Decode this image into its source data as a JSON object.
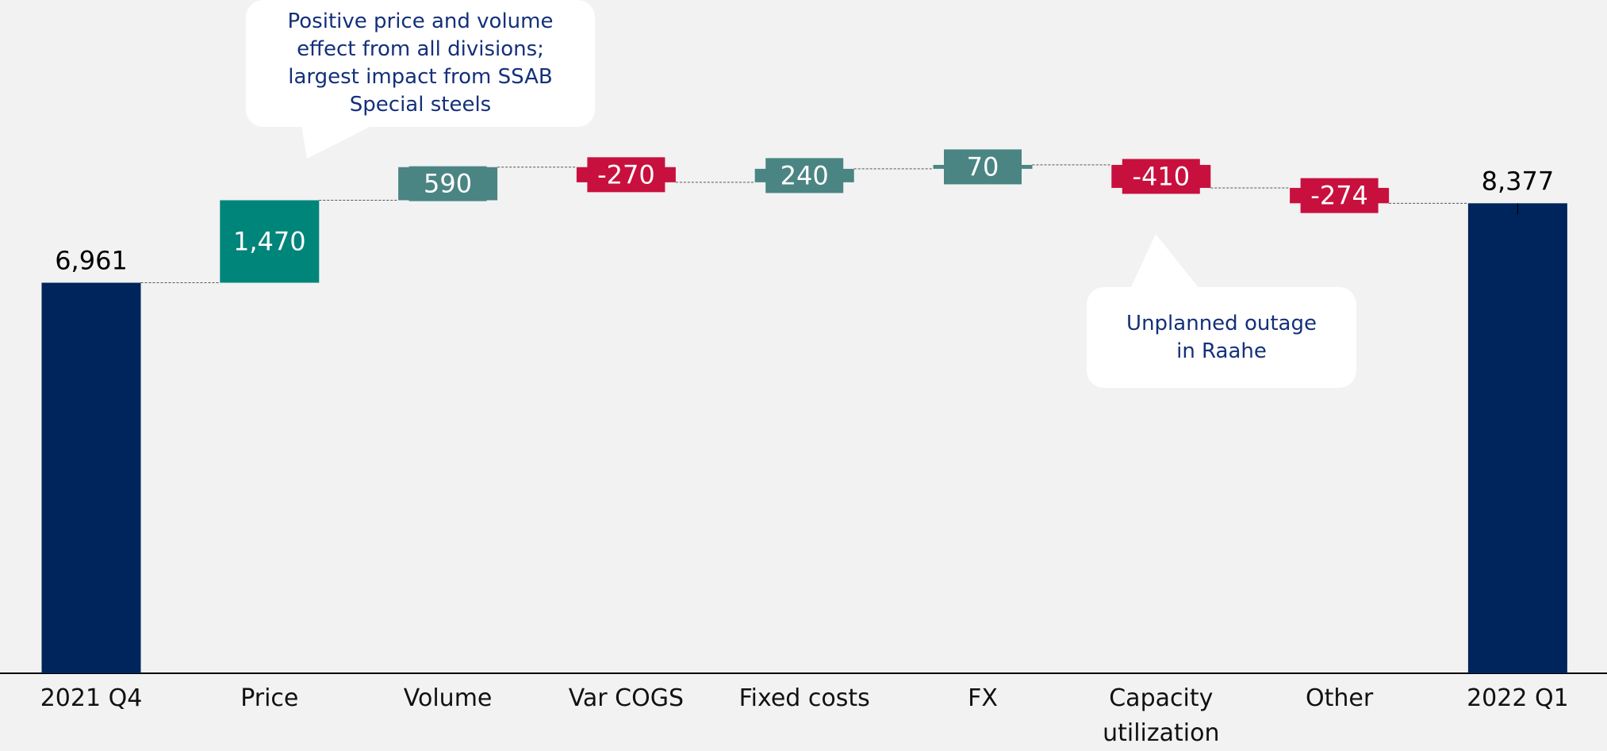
{
  "chart_data": {
    "type": "waterfall",
    "categories": [
      "2021 Q4",
      "Price",
      "Volume",
      "Var COGS",
      "Fixed costs",
      "FX",
      "Capacity utilization",
      "Other",
      "2022 Q1"
    ],
    "measure": [
      "absolute",
      "relative",
      "relative",
      "relative",
      "relative",
      "relative",
      "relative",
      "relative",
      "absolute"
    ],
    "values": [
      6961,
      1470,
      590,
      -270,
      240,
      70,
      -410,
      -274,
      8377
    ],
    "value_labels": [
      "6,961",
      "1,470",
      "590",
      "-270",
      "240",
      "70",
      "-410",
      "-274",
      "8,377"
    ],
    "colors": [
      "#00245c",
      "#00857a",
      "#4a8583",
      "#c8103e",
      "#4a8583",
      "#4a8583",
      "#c8103e",
      "#c8103e",
      "#00245c"
    ],
    "ylim": [
      0,
      12000
    ],
    "annotations": [
      "Positive price and volume effect from all divisions; largest impact from SSAB Special steels",
      "Unplanned outage in Raahe"
    ]
  }
}
